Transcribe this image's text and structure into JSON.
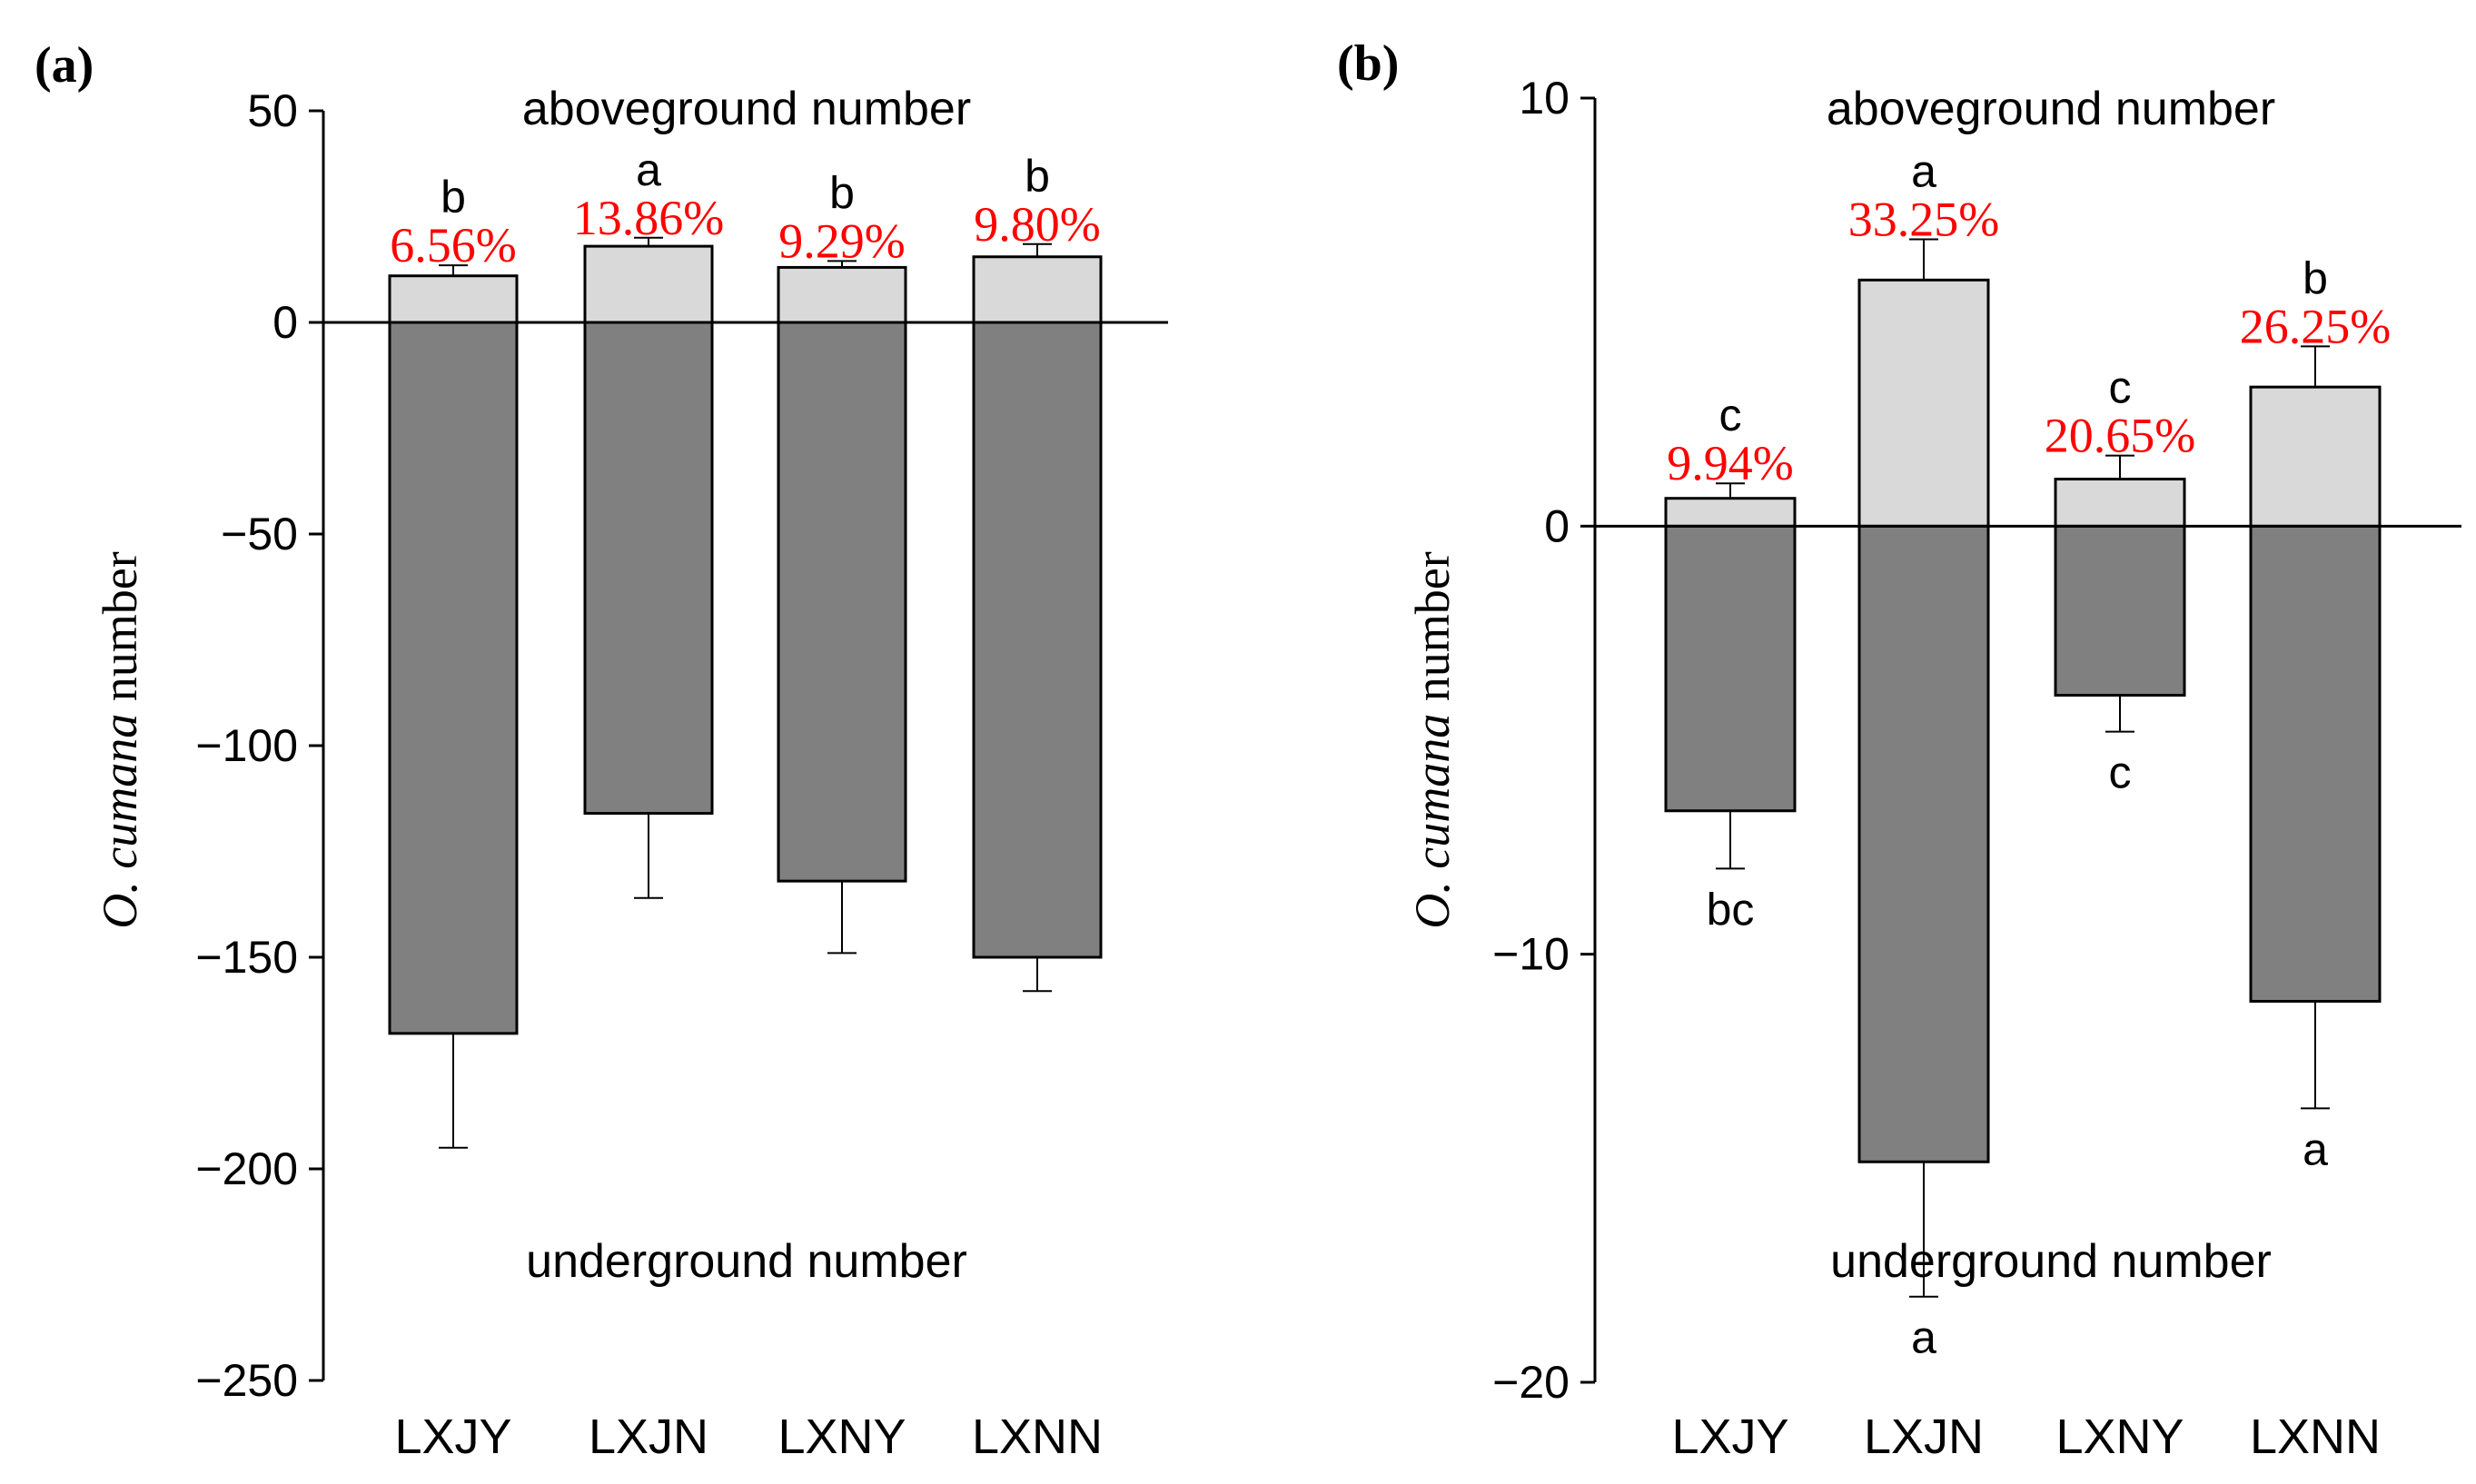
{
  "colors": {
    "above_fill": "#d9d9d9",
    "below_fill": "#808080",
    "percent_text": "#ff0000",
    "axis": "#000000"
  },
  "chart_data": [
    {
      "type": "bar",
      "panel_label": "(a)",
      "ylabel_italic": "O. cumana",
      "ylabel_rest": " number",
      "ylim": [
        -250,
        50
      ],
      "yticks": [
        50,
        0,
        -50,
        -100,
        -150,
        -200,
        -250
      ],
      "ytick_labels": [
        "50",
        "0",
        "−50",
        "−100",
        "−150",
        "−200",
        "−250"
      ],
      "categories": [
        "LXJY",
        "LXJN",
        "LXNY",
        "LXNN"
      ],
      "annotation_top": "aboveground number",
      "annotation_bottom": "underground number",
      "series": [
        {
          "name": "aboveground number",
          "values": [
            11,
            18,
            13,
            15.5
          ],
          "error_tops": [
            13.5,
            20,
            14.5,
            18.5
          ],
          "letters": [
            "b",
            "a",
            "b",
            "b"
          ],
          "percent_labels": [
            "6.56%",
            "13.86%",
            "9.29%",
            "9.80%"
          ]
        },
        {
          "name": "underground number",
          "values": [
            -168,
            -116,
            -132,
            -150
          ],
          "error_ends": [
            -195,
            -136,
            -149,
            -158
          ],
          "letters": [
            "",
            "",
            "",
            ""
          ]
        }
      ]
    },
    {
      "type": "bar",
      "panel_label": "(b)",
      "ylabel_italic": "O. cumana",
      "ylabel_rest": " number",
      "ylim": [
        -20,
        10
      ],
      "yticks": [
        10,
        0,
        -10,
        -20
      ],
      "ytick_labels": [
        "10",
        "0",
        "−10",
        "−20"
      ],
      "categories": [
        "LXJY",
        "LXJN",
        "LXNY",
        "LXNN"
      ],
      "annotation_top": "aboveground number",
      "annotation_bottom": "underground number",
      "series": [
        {
          "name": "aboveground number",
          "values": [
            0.65,
            5.75,
            1.1,
            3.25
          ],
          "error_tops": [
            1.0,
            6.7,
            1.65,
            4.2
          ],
          "letters": [
            "c",
            "a",
            "c",
            "b"
          ],
          "percent_labels": [
            "9.94%",
            "33.25%",
            "20.65%",
            "26.25%"
          ]
        },
        {
          "name": "underground number",
          "values": [
            -6.65,
            -14.85,
            -3.95,
            -11.1
          ],
          "error_ends": [
            -8.0,
            -18.0,
            -4.8,
            -13.6
          ],
          "letters": [
            "bc",
            "a",
            "c",
            "a"
          ]
        }
      ]
    }
  ]
}
